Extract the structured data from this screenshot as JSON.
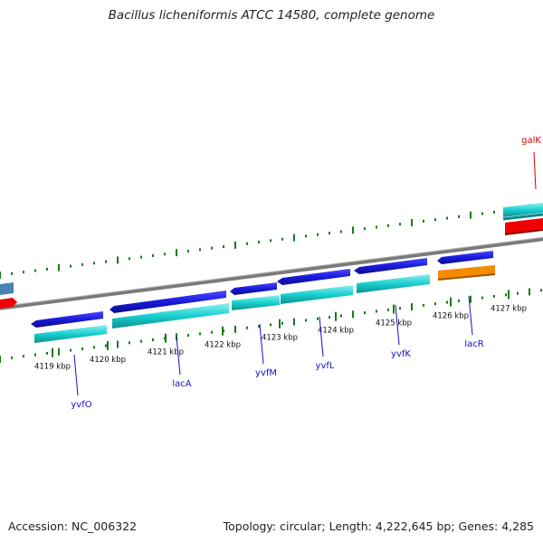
{
  "title": "Bacillus licheniformis ATCC 14580, complete genome",
  "accession_text": "Accession: NC_006322",
  "summary_text": "Topology: circular; Length: 4,222,645 bp; Genes: 4,285",
  "colors": {
    "backbone": "#808080",
    "cds_forward": "#1a1adc",
    "cds_reverse": "#1a1adc",
    "cds_alt": "#f58b00",
    "cds_red": "#ee0000",
    "cds_blue_grey": "#4682b4",
    "track_cyan": "#19d0d0",
    "tick_green": "#1a7a1a",
    "gene_label": "#1010c8",
    "gene_label_red": "#cc0000"
  },
  "ticks": [
    "4119 kbp",
    "4120 kbp",
    "4121 kbp",
    "4122 kbp",
    "4123 kbp",
    "4124 kbp",
    "4125 kbp",
    "4126 kbp",
    "4127 kbp"
  ],
  "genes": [
    "yvfO",
    "lacA",
    "yvfM",
    "yvfL",
    "yvfK",
    "lacR",
    "galK"
  ]
}
